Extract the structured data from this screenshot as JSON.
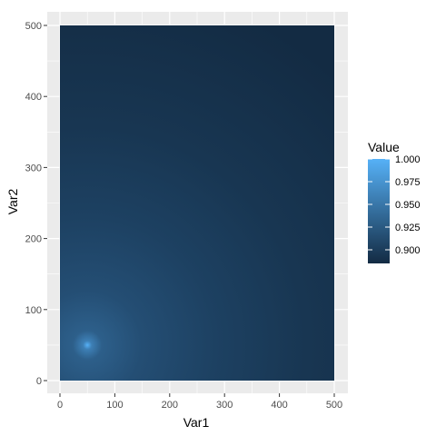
{
  "chart_data": {
    "type": "heatmap",
    "xlabel": "Var1",
    "ylabel": "Var2",
    "x_range": [
      0,
      500
    ],
    "y_range": [
      0,
      500
    ],
    "x_ticks": [
      0,
      100,
      200,
      300,
      400,
      500
    ],
    "y_ticks": [
      0,
      100,
      200,
      300,
      400,
      500
    ],
    "peak": {
      "x": 50,
      "y": 50,
      "value": 1.0
    },
    "value_range": [
      0.885,
      1.0
    ],
    "legend": {
      "title": "Value",
      "position": "right",
      "ticks": [
        1.0,
        0.975,
        0.95,
        0.925,
        0.9
      ],
      "tick_labels": [
        "1.000",
        "0.975",
        "0.950",
        "0.925",
        "0.900"
      ]
    },
    "colors": {
      "low": "#132B43",
      "high": "#56B1F7",
      "panel_background": "#EBEBEB",
      "grid": "#FFFFFF"
    },
    "grid": true
  }
}
